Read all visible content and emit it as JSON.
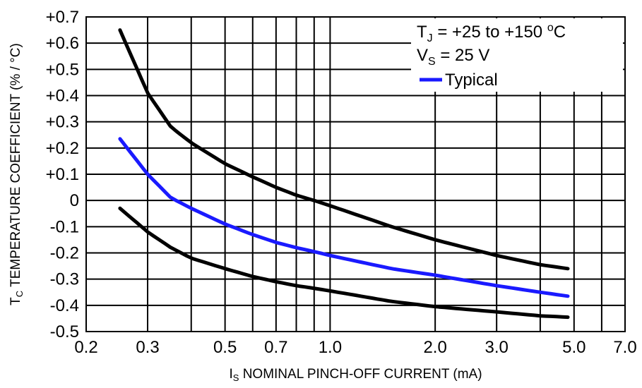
{
  "chart_data": {
    "type": "line",
    "xscale": "log",
    "xlim": [
      0.2,
      7.0
    ],
    "ylim": [
      -0.5,
      0.7
    ],
    "grid": true,
    "xticks": [
      {
        "value": 0.2,
        "label": "0.2"
      },
      {
        "value": 0.3,
        "label": "0.3"
      },
      {
        "value": 0.5,
        "label": "0.5"
      },
      {
        "value": 0.7,
        "label": "0.7"
      },
      {
        "value": 1.0,
        "label": "1.0"
      },
      {
        "value": 2.0,
        "label": "2.0"
      },
      {
        "value": 3.0,
        "label": "3.0"
      },
      {
        "value": 5.0,
        "label": "5.0"
      },
      {
        "value": 7.0,
        "label": "7.0"
      }
    ],
    "xgrid": [
      0.2,
      0.3,
      0.4,
      0.5,
      0.6,
      0.7,
      0.8,
      0.9,
      1.0,
      2.0,
      3.0,
      4.0,
      5.0,
      6.0,
      7.0
    ],
    "yticks": [
      {
        "value": 0.7,
        "label": "+0.7"
      },
      {
        "value": 0.6,
        "label": "+0.6"
      },
      {
        "value": 0.5,
        "label": "+0.5"
      },
      {
        "value": 0.4,
        "label": "+0.4"
      },
      {
        "value": 0.3,
        "label": "+0.3"
      },
      {
        "value": 0.2,
        "label": "+0.2"
      },
      {
        "value": 0.1,
        "label": "+0.1"
      },
      {
        "value": 0.0,
        "label": "0"
      },
      {
        "value": -0.1,
        "label": "-0.1"
      },
      {
        "value": -0.2,
        "label": "-0.2"
      },
      {
        "value": -0.3,
        "label": "-0.3"
      },
      {
        "value": -0.4,
        "label": "-0.4"
      },
      {
        "value": -0.5,
        "label": "-0.5"
      }
    ],
    "xlabel": {
      "prefix": "I",
      "sub": "S",
      "text": " NOMINAL PINCH-OFF CURRENT (mA)"
    },
    "ylabel": {
      "prefix": "T",
      "sub": "C",
      "text": " TEMPERATURE COEFFICIENT (% / °C)"
    },
    "annotations": [
      {
        "main": "T",
        "sub": "J",
        "rest": " = +25 to +150 ",
        "sup": "o",
        "tail": "C"
      },
      {
        "main": "V",
        "sub": "S",
        "rest": " = 25 V",
        "sup": "",
        "tail": ""
      }
    ],
    "series": [
      {
        "name": "",
        "color": "#000000",
        "x": [
          0.25,
          0.3,
          0.35,
          0.4,
          0.5,
          0.6,
          0.7,
          0.8,
          0.9,
          1.0,
          1.5,
          2.0,
          3.0,
          4.0,
          4.8
        ],
        "y": [
          0.65,
          0.41,
          0.28,
          0.22,
          0.14,
          0.09,
          0.05,
          0.02,
          0.0,
          -0.02,
          -0.1,
          -0.15,
          -0.21,
          -0.245,
          -0.26
        ]
      },
      {
        "name": "Typical",
        "color": "#1a1aff",
        "x": [
          0.25,
          0.3,
          0.35,
          0.4,
          0.5,
          0.6,
          0.7,
          0.8,
          0.9,
          1.0,
          1.5,
          2.0,
          3.0,
          4.0,
          4.8
        ],
        "y": [
          0.235,
          0.1,
          0.01,
          -0.03,
          -0.09,
          -0.13,
          -0.16,
          -0.18,
          -0.195,
          -0.21,
          -0.26,
          -0.285,
          -0.325,
          -0.35,
          -0.365
        ]
      },
      {
        "name": "",
        "color": "#000000",
        "x": [
          0.25,
          0.3,
          0.35,
          0.4,
          0.5,
          0.6,
          0.7,
          0.8,
          0.9,
          1.0,
          1.5,
          2.0,
          3.0,
          4.0,
          4.8
        ],
        "y": [
          -0.03,
          -0.12,
          -0.18,
          -0.22,
          -0.26,
          -0.29,
          -0.31,
          -0.325,
          -0.335,
          -0.345,
          -0.385,
          -0.405,
          -0.425,
          -0.44,
          -0.445
        ]
      }
    ]
  }
}
